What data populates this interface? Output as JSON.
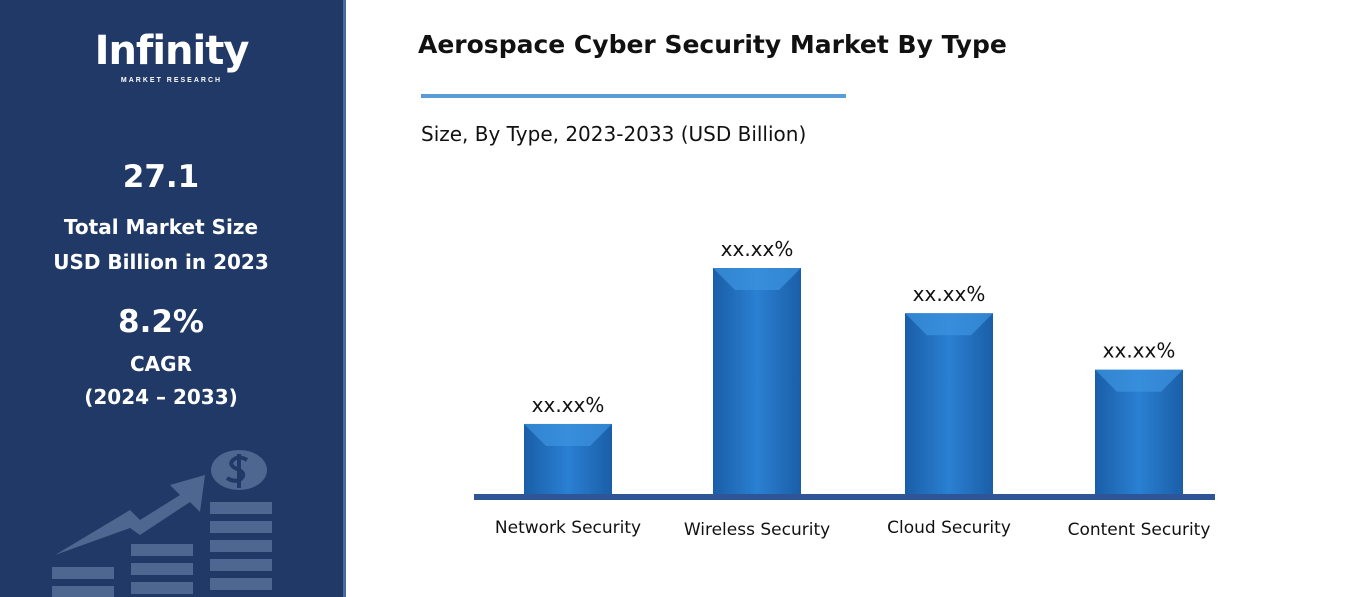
{
  "sidebar": {
    "logo_text": "Infinity",
    "logo_subtext": "MARKET RESEARCH",
    "market_size": "27.1",
    "market_size_label_1": "Total Market Size",
    "market_size_label_2": "USD Billion in 2023",
    "cagr": "8.2%",
    "cagr_label": "CAGR",
    "cagr_period": "(2024 – 2033)",
    "illustration_icon": "growth-chart-dollar-icon"
  },
  "colors": {
    "sidebar": "#213966",
    "bar": "#1f6fbf",
    "baseline": "#2f5597",
    "rule": "#5b9bd5"
  },
  "chart_data": {
    "type": "bar",
    "title": "Aerospace Cyber Security Market By Type",
    "subtitle": "Size, By Type, 2023-2033 (USD Billion)",
    "categories": [
      "Network Security",
      "Wireless Security",
      "Cloud Security",
      "Content Security"
    ],
    "values": [
      31,
      100,
      80,
      55
    ],
    "data_labels": [
      "xx.xx%",
      "xx.xx%",
      "xx.xx%",
      "xx.xx%"
    ],
    "ylim": [
      0,
      100
    ],
    "grid": false,
    "yaxis_shown": false
  }
}
